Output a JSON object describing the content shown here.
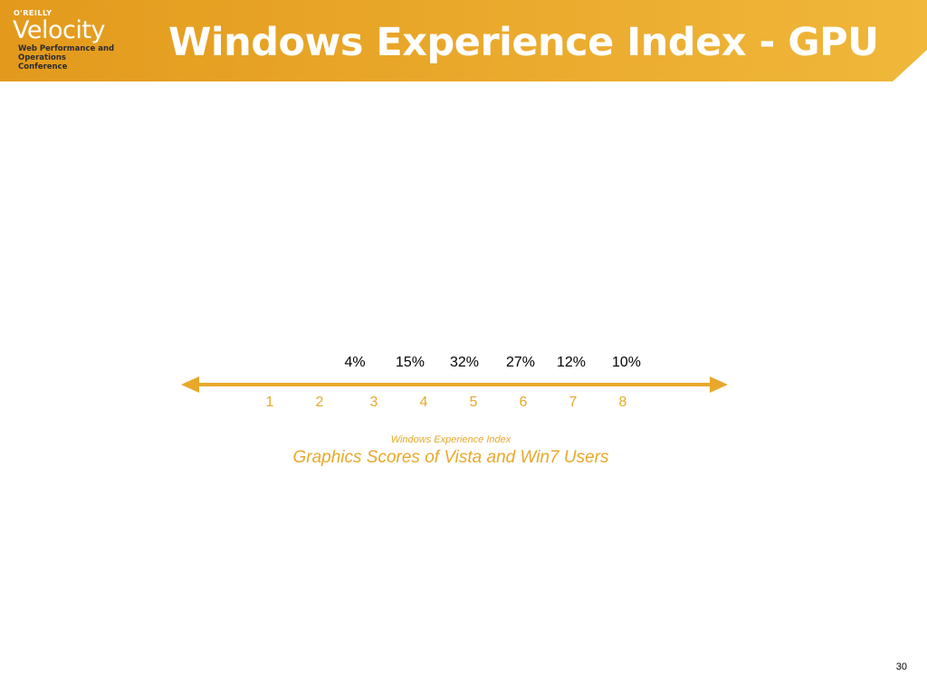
{
  "header": {
    "title": "Windows Experience Index - GPU",
    "logo": {
      "publisher": "O'REILLY",
      "name": "Velocity",
      "tagline": "Web Performance and Operations Conference"
    }
  },
  "colors": {
    "banner_gold": "#e6a323",
    "banner_light": "#f2c24e",
    "accent": "#e8a82a"
  },
  "axis": {
    "ticks": [
      "1",
      "2",
      "3",
      "4",
      "5",
      "6",
      "7",
      "8"
    ],
    "percentages": [
      "4%",
      "15%",
      "32%",
      "27%",
      "12%",
      "10%"
    ],
    "axis_label": "Windows Experience Index",
    "caption": "Graphics Scores of Vista and Win7 Users"
  },
  "page_number": "30"
}
